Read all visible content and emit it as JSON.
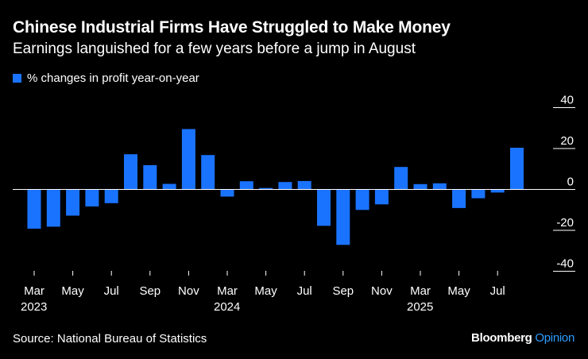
{
  "title": "Chinese Industrial Firms Have Struggled to Make Money",
  "subtitle": "Earnings languished for a few years before a jump in August",
  "source": "Source: National Bureau of Statistics",
  "brand": {
    "name": "Bloomberg",
    "suffix": "Opinion",
    "suffix_color": "#2d9cff"
  },
  "colors": {
    "bar": "#1a73ff",
    "background": "#000000",
    "text": "#ffffff",
    "zero_line": "#ffffff",
    "tick_line": "#ffffff"
  },
  "chart_data": {
    "type": "bar",
    "legend": "% changes in profit year-on-year",
    "legend_position": "top-left",
    "y_axis_side": "right",
    "ylim": [
      -40,
      40
    ],
    "yticks": [
      40,
      20,
      0,
      -20,
      -40
    ],
    "categories": [
      "Mar 2023",
      "Apr 2023",
      "May 2023",
      "Jun 2023",
      "Jul 2023",
      "Aug 2023",
      "Sep 2023",
      "Oct 2023",
      "Nov 2023",
      "Dec 2023",
      "Mar 2024",
      "Apr 2024",
      "May 2024",
      "Jun 2024",
      "Jul 2024",
      "Aug 2024",
      "Sep 2024",
      "Oct 2024",
      "Nov 2024",
      "Dec 2024",
      "Mar 2025",
      "Apr 2025",
      "May 2025",
      "Jun 2025",
      "Jul 2025",
      "Aug 2025"
    ],
    "values": [
      -19.2,
      -18.2,
      -12.8,
      -8.3,
      -6.7,
      17.2,
      11.9,
      2.7,
      29.5,
      16.8,
      -3.5,
      4.0,
      0.7,
      3.6,
      4.1,
      -17.8,
      -27.1,
      -10.0,
      -7.3,
      11.0,
      2.6,
      3.0,
      -9.1,
      -4.3,
      -1.5,
      20.4
    ],
    "x_tick_labels": [
      {
        "index": 0,
        "month": "Mar",
        "year": "2023"
      },
      {
        "index": 2,
        "month": "May",
        "year": ""
      },
      {
        "index": 4,
        "month": "Jul",
        "year": ""
      },
      {
        "index": 6,
        "month": "Sep",
        "year": ""
      },
      {
        "index": 8,
        "month": "Nov",
        "year": ""
      },
      {
        "index": 10,
        "month": "Mar",
        "year": "2024"
      },
      {
        "index": 12,
        "month": "May",
        "year": ""
      },
      {
        "index": 14,
        "month": "Jul",
        "year": ""
      },
      {
        "index": 16,
        "month": "Sep",
        "year": ""
      },
      {
        "index": 18,
        "month": "Nov",
        "year": ""
      },
      {
        "index": 20,
        "month": "Mar",
        "year": "2025"
      },
      {
        "index": 22,
        "month": "May",
        "year": ""
      },
      {
        "index": 24,
        "month": "Jul",
        "year": ""
      }
    ]
  }
}
